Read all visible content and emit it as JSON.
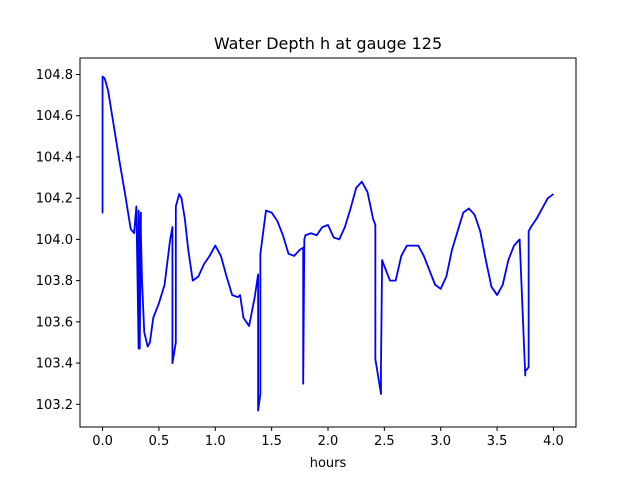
{
  "chart_data": {
    "type": "line",
    "title": "Water Depth h at gauge 125",
    "xlabel": "hours",
    "ylabel": "",
    "xlim": [
      -0.2,
      4.2
    ],
    "ylim": [
      103.09,
      104.88
    ],
    "xticks": [
      "0.0",
      "0.5",
      "1.0",
      "1.5",
      "2.0",
      "2.5",
      "3.0",
      "3.5",
      "4.0"
    ],
    "xtick_values": [
      0.0,
      0.5,
      1.0,
      1.5,
      2.0,
      2.5,
      3.0,
      3.5,
      4.0
    ],
    "yticks": [
      "103.2",
      "103.4",
      "103.6",
      "103.8",
      "104.0",
      "104.2",
      "104.4",
      "104.6",
      "104.8"
    ],
    "ytick_values": [
      103.2,
      103.4,
      103.6,
      103.8,
      104.0,
      104.2,
      104.4,
      104.6,
      104.8
    ],
    "grid": false,
    "series": [
      {
        "color": "#0000ff",
        "x": [
          0.0,
          0.0,
          0.0,
          0.0,
          0.02,
          0.05,
          0.1,
          0.15,
          0.2,
          0.25,
          0.28,
          0.3,
          0.32,
          0.32,
          0.33,
          0.33,
          0.34,
          0.34,
          0.35,
          0.37,
          0.4,
          0.42,
          0.45,
          0.5,
          0.55,
          0.6,
          0.62,
          0.62,
          0.65,
          0.65,
          0.68,
          0.7,
          0.73,
          0.76,
          0.8,
          0.85,
          0.9,
          0.95,
          1.0,
          1.05,
          1.1,
          1.15,
          1.2,
          1.22,
          1.25,
          1.3,
          1.35,
          1.38,
          1.38,
          1.4,
          1.4,
          1.45,
          1.5,
          1.55,
          1.6,
          1.65,
          1.7,
          1.75,
          1.78,
          1.78,
          1.79,
          1.8,
          1.85,
          1.9,
          1.95,
          2.0,
          2.05,
          2.1,
          2.15,
          2.2,
          2.25,
          2.3,
          2.35,
          2.4,
          2.42,
          2.42,
          2.47,
          2.47,
          2.48,
          2.5,
          2.55,
          2.6,
          2.65,
          2.7,
          2.8,
          2.85,
          2.95,
          3.0,
          3.05,
          3.1,
          3.2,
          3.25,
          3.3,
          3.35,
          3.4,
          3.45,
          3.5,
          3.55,
          3.6,
          3.65,
          3.7,
          3.75,
          3.75,
          3.78,
          3.78,
          3.8,
          3.85,
          3.9,
          3.95,
          4.0
        ],
        "y": [
          104.13,
          104.45,
          104.13,
          104.79,
          104.78,
          104.72,
          104.55,
          104.38,
          104.22,
          104.05,
          104.03,
          104.16,
          103.47,
          104.14,
          104.0,
          103.47,
          104.13,
          104.03,
          103.8,
          103.55,
          103.48,
          103.5,
          103.62,
          103.69,
          103.78,
          104.0,
          104.06,
          103.4,
          103.5,
          104.16,
          104.22,
          104.2,
          104.1,
          103.95,
          103.8,
          103.82,
          103.88,
          103.92,
          103.97,
          103.92,
          103.82,
          103.73,
          103.72,
          103.73,
          103.62,
          103.58,
          103.72,
          103.83,
          103.17,
          103.25,
          103.93,
          104.14,
          104.13,
          104.09,
          104.02,
          103.93,
          103.92,
          103.95,
          103.96,
          103.3,
          104.0,
          104.02,
          104.03,
          104.02,
          104.06,
          104.07,
          104.01,
          104.0,
          104.06,
          104.15,
          104.25,
          104.28,
          104.23,
          104.1,
          104.07,
          103.42,
          103.25,
          103.38,
          103.9,
          103.87,
          103.8,
          103.8,
          103.92,
          103.97,
          103.97,
          103.92,
          103.78,
          103.76,
          103.82,
          103.95,
          104.13,
          104.15,
          104.12,
          104.04,
          103.9,
          103.77,
          103.73,
          103.78,
          103.9,
          103.97,
          104.0,
          103.34,
          103.36,
          103.38,
          104.04,
          104.06,
          104.1,
          104.15,
          104.2,
          104.22
        ]
      }
    ]
  }
}
